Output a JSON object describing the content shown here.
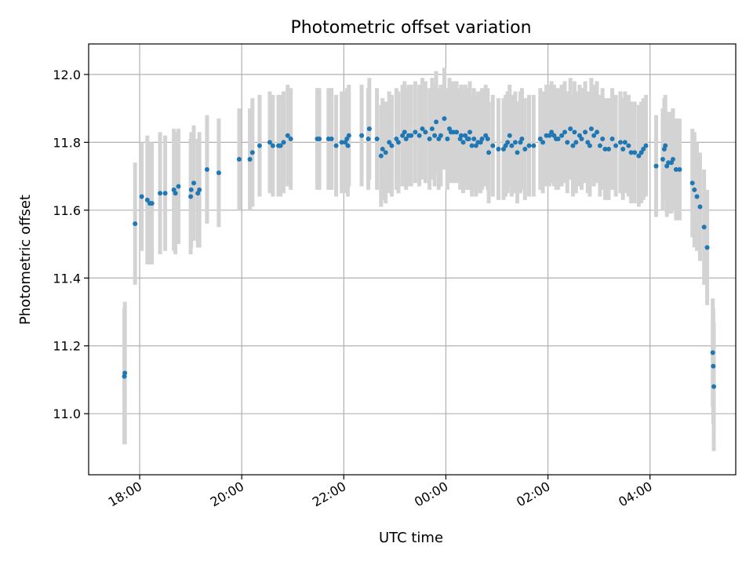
{
  "chart_data": {
    "type": "scatter",
    "title": "Photometric offset variation",
    "xlabel": "UTC time",
    "ylabel": "Photometric offset",
    "x_axis": {
      "type": "time",
      "start": "17:00",
      "range_hours": [
        0.0,
        12.68
      ],
      "ticks": [
        {
          "hour": 1,
          "label": "18:00"
        },
        {
          "hour": 3,
          "label": "20:00"
        },
        {
          "hour": 5,
          "label": "22:00"
        },
        {
          "hour": 7,
          "label": "00:00"
        },
        {
          "hour": 9,
          "label": "02:00"
        },
        {
          "hour": 11,
          "label": "04:00"
        }
      ]
    },
    "y_axis": {
      "range": [
        10.82,
        12.09
      ],
      "ticks": [
        {
          "value": 11.0,
          "label": "11.0"
        },
        {
          "value": 11.2,
          "label": "11.2"
        },
        {
          "value": 11.4,
          "label": "11.4"
        },
        {
          "value": 11.6,
          "label": "11.6"
        },
        {
          "value": 11.8,
          "label": "11.8"
        },
        {
          "value": 12.0,
          "label": "12.0"
        }
      ]
    },
    "grid": true,
    "colors": {
      "point": "#1f77b4",
      "errorbar": "#d3d3d3",
      "grid": "#b0b0b0"
    },
    "points": [
      [
        17.7,
        11.11,
        0.2
      ],
      [
        17.71,
        11.12,
        0.21
      ],
      [
        17.91,
        11.56,
        0.18
      ],
      [
        18.04,
        11.64,
        0.16
      ],
      [
        18.15,
        11.63,
        0.19
      ],
      [
        18.2,
        11.62,
        0.18
      ],
      [
        18.24,
        11.62,
        0.18
      ],
      [
        18.4,
        11.65,
        0.18
      ],
      [
        18.5,
        11.65,
        0.17
      ],
      [
        18.67,
        11.66,
        0.18
      ],
      [
        18.7,
        11.65,
        0.18
      ],
      [
        18.76,
        11.67,
        0.17
      ],
      [
        19.0,
        11.64,
        0.17
      ],
      [
        19.01,
        11.66,
        0.17
      ],
      [
        19.06,
        11.68,
        0.17
      ],
      [
        19.14,
        11.65,
        0.16
      ],
      [
        19.17,
        11.66,
        0.17
      ],
      [
        19.32,
        11.72,
        0.16
      ],
      [
        19.55,
        11.71,
        0.16
      ],
      [
        19.95,
        11.75,
        0.15
      ],
      [
        20.16,
        11.75,
        0.15
      ],
      [
        20.21,
        11.77,
        0.16
      ],
      [
        20.35,
        11.79,
        0.15
      ],
      [
        20.55,
        11.8,
        0.15
      ],
      [
        20.61,
        11.79,
        0.15
      ],
      [
        20.72,
        11.79,
        0.15
      ],
      [
        20.76,
        11.79,
        0.15
      ],
      [
        20.82,
        11.8,
        0.15
      ],
      [
        20.9,
        11.82,
        0.15
      ],
      [
        20.96,
        11.81,
        0.15
      ],
      [
        21.48,
        11.81,
        0.15
      ],
      [
        21.52,
        11.81,
        0.15
      ],
      [
        21.7,
        11.81,
        0.15
      ],
      [
        21.76,
        11.81,
        0.15
      ],
      [
        21.85,
        11.79,
        0.15
      ],
      [
        21.96,
        11.8,
        0.15
      ],
      [
        22.03,
        11.8,
        0.15
      ],
      [
        22.06,
        11.81,
        0.15
      ],
      [
        22.08,
        11.79,
        0.15
      ],
      [
        22.1,
        11.82,
        0.15
      ],
      [
        22.35,
        11.82,
        0.15
      ],
      [
        22.48,
        11.81,
        0.15
      ],
      [
        22.5,
        11.84,
        0.15
      ],
      [
        22.65,
        11.81,
        0.15
      ],
      [
        22.73,
        11.76,
        0.15
      ],
      [
        22.76,
        11.78,
        0.15
      ],
      [
        22.82,
        11.77,
        0.15
      ],
      [
        22.89,
        11.8,
        0.15
      ],
      [
        22.94,
        11.79,
        0.15
      ],
      [
        23.03,
        11.81,
        0.15
      ],
      [
        23.07,
        11.8,
        0.15
      ],
      [
        23.15,
        11.82,
        0.15
      ],
      [
        23.19,
        11.83,
        0.15
      ],
      [
        23.22,
        11.81,
        0.15
      ],
      [
        23.27,
        11.82,
        0.15
      ],
      [
        23.32,
        11.82,
        0.15
      ],
      [
        23.4,
        11.83,
        0.15
      ],
      [
        23.48,
        11.82,
        0.15
      ],
      [
        23.54,
        11.84,
        0.15
      ],
      [
        23.6,
        11.83,
        0.15
      ],
      [
        23.68,
        11.81,
        0.15
      ],
      [
        23.73,
        11.84,
        0.15
      ],
      [
        23.78,
        11.82,
        0.15
      ],
      [
        23.81,
        11.86,
        0.15
      ],
      [
        23.86,
        11.81,
        0.15
      ],
      [
        23.9,
        11.82,
        0.15
      ],
      [
        23.97,
        11.87,
        0.15
      ],
      [
        24.03,
        11.81,
        0.15
      ],
      [
        24.07,
        11.84,
        0.15
      ],
      [
        24.1,
        11.83,
        0.15
      ],
      [
        24.15,
        11.83,
        0.15
      ],
      [
        24.21,
        11.83,
        0.15
      ],
      [
        24.28,
        11.81,
        0.15
      ],
      [
        24.3,
        11.82,
        0.15
      ],
      [
        24.34,
        11.8,
        0.15
      ],
      [
        24.38,
        11.82,
        0.15
      ],
      [
        24.42,
        11.81,
        0.15
      ],
      [
        24.45,
        11.81,
        0.15
      ],
      [
        24.47,
        11.83,
        0.15
      ],
      [
        24.51,
        11.79,
        0.15
      ],
      [
        24.55,
        11.81,
        0.15
      ],
      [
        24.59,
        11.79,
        0.15
      ],
      [
        24.63,
        11.8,
        0.15
      ],
      [
        24.68,
        11.8,
        0.15
      ],
      [
        24.71,
        11.81,
        0.15
      ],
      [
        24.78,
        11.82,
        0.15
      ],
      [
        24.82,
        11.81,
        0.15
      ],
      [
        24.84,
        11.77,
        0.15
      ],
      [
        24.92,
        11.79,
        0.15
      ],
      [
        25.03,
        11.78,
        0.15
      ],
      [
        25.13,
        11.78,
        0.15
      ],
      [
        25.17,
        11.79,
        0.15
      ],
      [
        25.21,
        11.8,
        0.15
      ],
      [
        25.25,
        11.82,
        0.15
      ],
      [
        25.29,
        11.79,
        0.15
      ],
      [
        25.36,
        11.8,
        0.15
      ],
      [
        25.4,
        11.77,
        0.15
      ],
      [
        25.46,
        11.8,
        0.15
      ],
      [
        25.49,
        11.81,
        0.15
      ],
      [
        25.55,
        11.78,
        0.15
      ],
      [
        25.63,
        11.79,
        0.15
      ],
      [
        25.72,
        11.79,
        0.15
      ],
      [
        25.85,
        11.81,
        0.15
      ],
      [
        25.9,
        11.8,
        0.15
      ],
      [
        25.97,
        11.82,
        0.15
      ],
      [
        26.03,
        11.82,
        0.15
      ],
      [
        26.07,
        11.83,
        0.15
      ],
      [
        26.12,
        11.82,
        0.15
      ],
      [
        26.16,
        11.81,
        0.15
      ],
      [
        26.2,
        11.81,
        0.15
      ],
      [
        26.27,
        11.82,
        0.15
      ],
      [
        26.33,
        11.83,
        0.15
      ],
      [
        26.38,
        11.8,
        0.15
      ],
      [
        26.44,
        11.84,
        0.15
      ],
      [
        26.49,
        11.79,
        0.15
      ],
      [
        26.52,
        11.83,
        0.15
      ],
      [
        26.55,
        11.8,
        0.15
      ],
      [
        26.62,
        11.82,
        0.15
      ],
      [
        26.66,
        11.81,
        0.15
      ],
      [
        26.73,
        11.83,
        0.15
      ],
      [
        26.78,
        11.8,
        0.15
      ],
      [
        26.82,
        11.79,
        0.15
      ],
      [
        26.85,
        11.84,
        0.15
      ],
      [
        26.9,
        11.82,
        0.15
      ],
      [
        26.96,
        11.83,
        0.15
      ],
      [
        27.02,
        11.79,
        0.15
      ],
      [
        27.07,
        11.81,
        0.15
      ],
      [
        27.12,
        11.78,
        0.15
      ],
      [
        27.19,
        11.78,
        0.15
      ],
      [
        27.26,
        11.81,
        0.15
      ],
      [
        27.33,
        11.79,
        0.15
      ],
      [
        27.42,
        11.8,
        0.15
      ],
      [
        27.47,
        11.78,
        0.15
      ],
      [
        27.51,
        11.8,
        0.15
      ],
      [
        27.58,
        11.79,
        0.15
      ],
      [
        27.63,
        11.77,
        0.15
      ],
      [
        27.7,
        11.77,
        0.15
      ],
      [
        27.78,
        11.76,
        0.15
      ],
      [
        27.83,
        11.77,
        0.15
      ],
      [
        27.87,
        11.78,
        0.15
      ],
      [
        27.92,
        11.79,
        0.15
      ],
      [
        28.12,
        11.73,
        0.15
      ],
      [
        28.25,
        11.75,
        0.15
      ],
      [
        28.28,
        11.78,
        0.15
      ],
      [
        28.3,
        11.79,
        0.15
      ],
      [
        28.33,
        11.73,
        0.15
      ],
      [
        28.36,
        11.74,
        0.15
      ],
      [
        28.42,
        11.74,
        0.15
      ],
      [
        28.45,
        11.75,
        0.15
      ],
      [
        28.51,
        11.72,
        0.15
      ],
      [
        28.58,
        11.72,
        0.15
      ],
      [
        28.83,
        11.68,
        0.16
      ],
      [
        28.87,
        11.66,
        0.17
      ],
      [
        28.92,
        11.64,
        0.16
      ],
      [
        28.98,
        11.61,
        0.16
      ],
      [
        29.06,
        11.55,
        0.17
      ],
      [
        29.12,
        11.49,
        0.17
      ],
      [
        29.23,
        11.18,
        0.16
      ],
      [
        29.24,
        11.14,
        0.17
      ],
      [
        29.25,
        11.08,
        0.19
      ]
    ]
  }
}
